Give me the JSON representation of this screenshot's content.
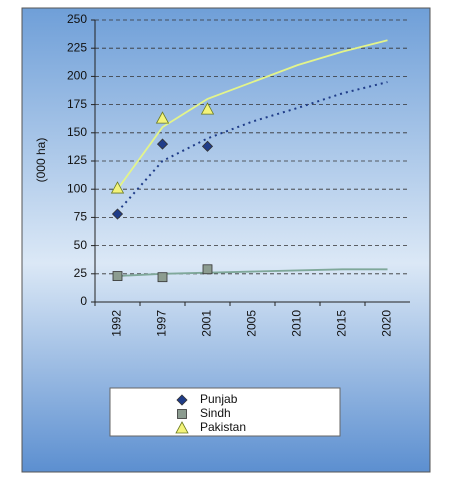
{
  "chart_data": {
    "type": "line",
    "y_label": "(000 ha)",
    "categories": [
      "1992",
      "1997",
      "2001",
      "2005",
      "2010",
      "2015",
      "2020"
    ],
    "ylim": [
      0,
      250
    ],
    "yticks": [
      0,
      25,
      50,
      75,
      100,
      125,
      150,
      175,
      200,
      225,
      250
    ],
    "grid": true,
    "legend": "bottom",
    "series": [
      {
        "name": "Punjab",
        "color": "#1f3c88",
        "marker": "diamond",
        "values": [
          78,
          140,
          138,
          null,
          null,
          null,
          null
        ],
        "trend": [
          80,
          125,
          145,
          160,
          172,
          185,
          195
        ],
        "trend_color": "#1f3c88",
        "trend_dash": true
      },
      {
        "name": "Sindh",
        "color": "#8c9c90",
        "marker": "square",
        "values": [
          23,
          22,
          29,
          null,
          null,
          null,
          null
        ],
        "trend": [
          23,
          25,
          26,
          27,
          28,
          29,
          29
        ],
        "trend_color": "#7fa89a",
        "trend_dash": false
      },
      {
        "name": "Pakistan",
        "color": "#f3f37a",
        "marker": "triangle",
        "values": [
          101,
          163,
          171,
          null,
          null,
          null,
          null
        ],
        "trend": [
          100,
          155,
          180,
          195,
          210,
          222,
          232
        ],
        "trend_color": "#e3f48a",
        "trend_dash": false
      }
    ]
  }
}
